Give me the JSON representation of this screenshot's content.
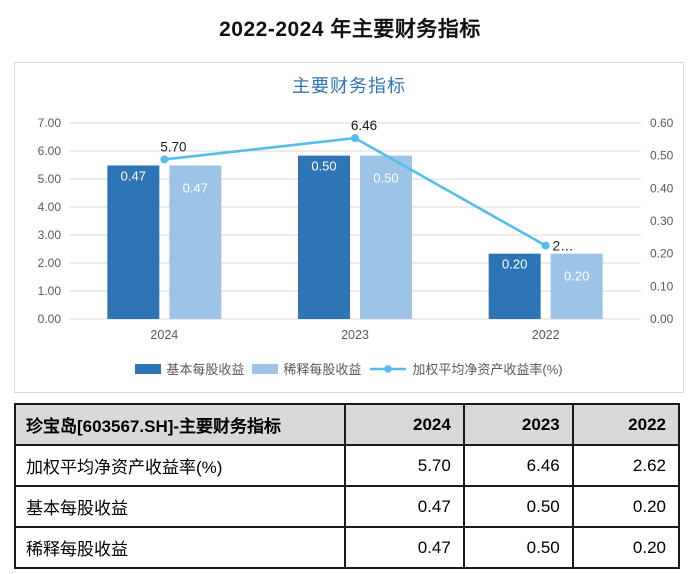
{
  "page": {
    "title": "2022-2024 年主要财务指标"
  },
  "chart_data": {
    "type": "bar",
    "title": "主要财务指标",
    "categories": [
      "2024",
      "2023",
      "2022"
    ],
    "series": [
      {
        "name": "基本每股收益",
        "type": "bar",
        "axis": "right",
        "color": "#2e75b6",
        "values": [
          0.47,
          0.5,
          0.2
        ],
        "labels": [
          "0.47",
          "0.50",
          "0.20"
        ]
      },
      {
        "name": "稀释每股收益",
        "type": "bar",
        "axis": "right",
        "color": "#9dc3e6",
        "values": [
          0.47,
          0.5,
          0.2
        ],
        "labels": [
          "0.47",
          "0.50",
          "0.20"
        ]
      },
      {
        "name": "加权平均净资产收益率(%)",
        "type": "line",
        "axis": "left",
        "color": "#54beeb",
        "values": [
          5.7,
          6.46,
          2.62
        ],
        "labels": [
          "5.70",
          "6.46",
          "2…"
        ]
      }
    ],
    "left_axis": {
      "min": 0,
      "max": 7,
      "ticks": [
        "7.00",
        "6.00",
        "5.00",
        "4.00",
        "3.00",
        "2.00",
        "1.00",
        "0.00"
      ]
    },
    "right_axis": {
      "min": 0,
      "max": 0.6,
      "ticks": [
        "0.60",
        "0.50",
        "0.40",
        "0.30",
        "0.20",
        "0.10",
        "0.00"
      ]
    },
    "grid": true,
    "legend_position": "bottom"
  },
  "table": {
    "header": [
      "珍宝岛[603567.SH]-主要财务指标",
      "2024",
      "2023",
      "2022"
    ],
    "rows": [
      {
        "label": "加权平均净资产收益率(%)",
        "values": [
          "5.70",
          "6.46",
          "2.62"
        ]
      },
      {
        "label": "基本每股收益",
        "values": [
          "0.47",
          "0.50",
          "0.20"
        ]
      },
      {
        "label": "稀释每股收益",
        "values": [
          "0.47",
          "0.50",
          "0.20"
        ]
      }
    ]
  },
  "colors": {
    "bar_dark": "#2e75b6",
    "bar_light": "#9dc3e6",
    "line": "#54beeb",
    "grid": "#d9d9d9",
    "axis_text": "#595959",
    "title_blue": "#2e75b6",
    "table_header_bg": "#d9d9d9",
    "table_border": "#1a1a1a"
  }
}
